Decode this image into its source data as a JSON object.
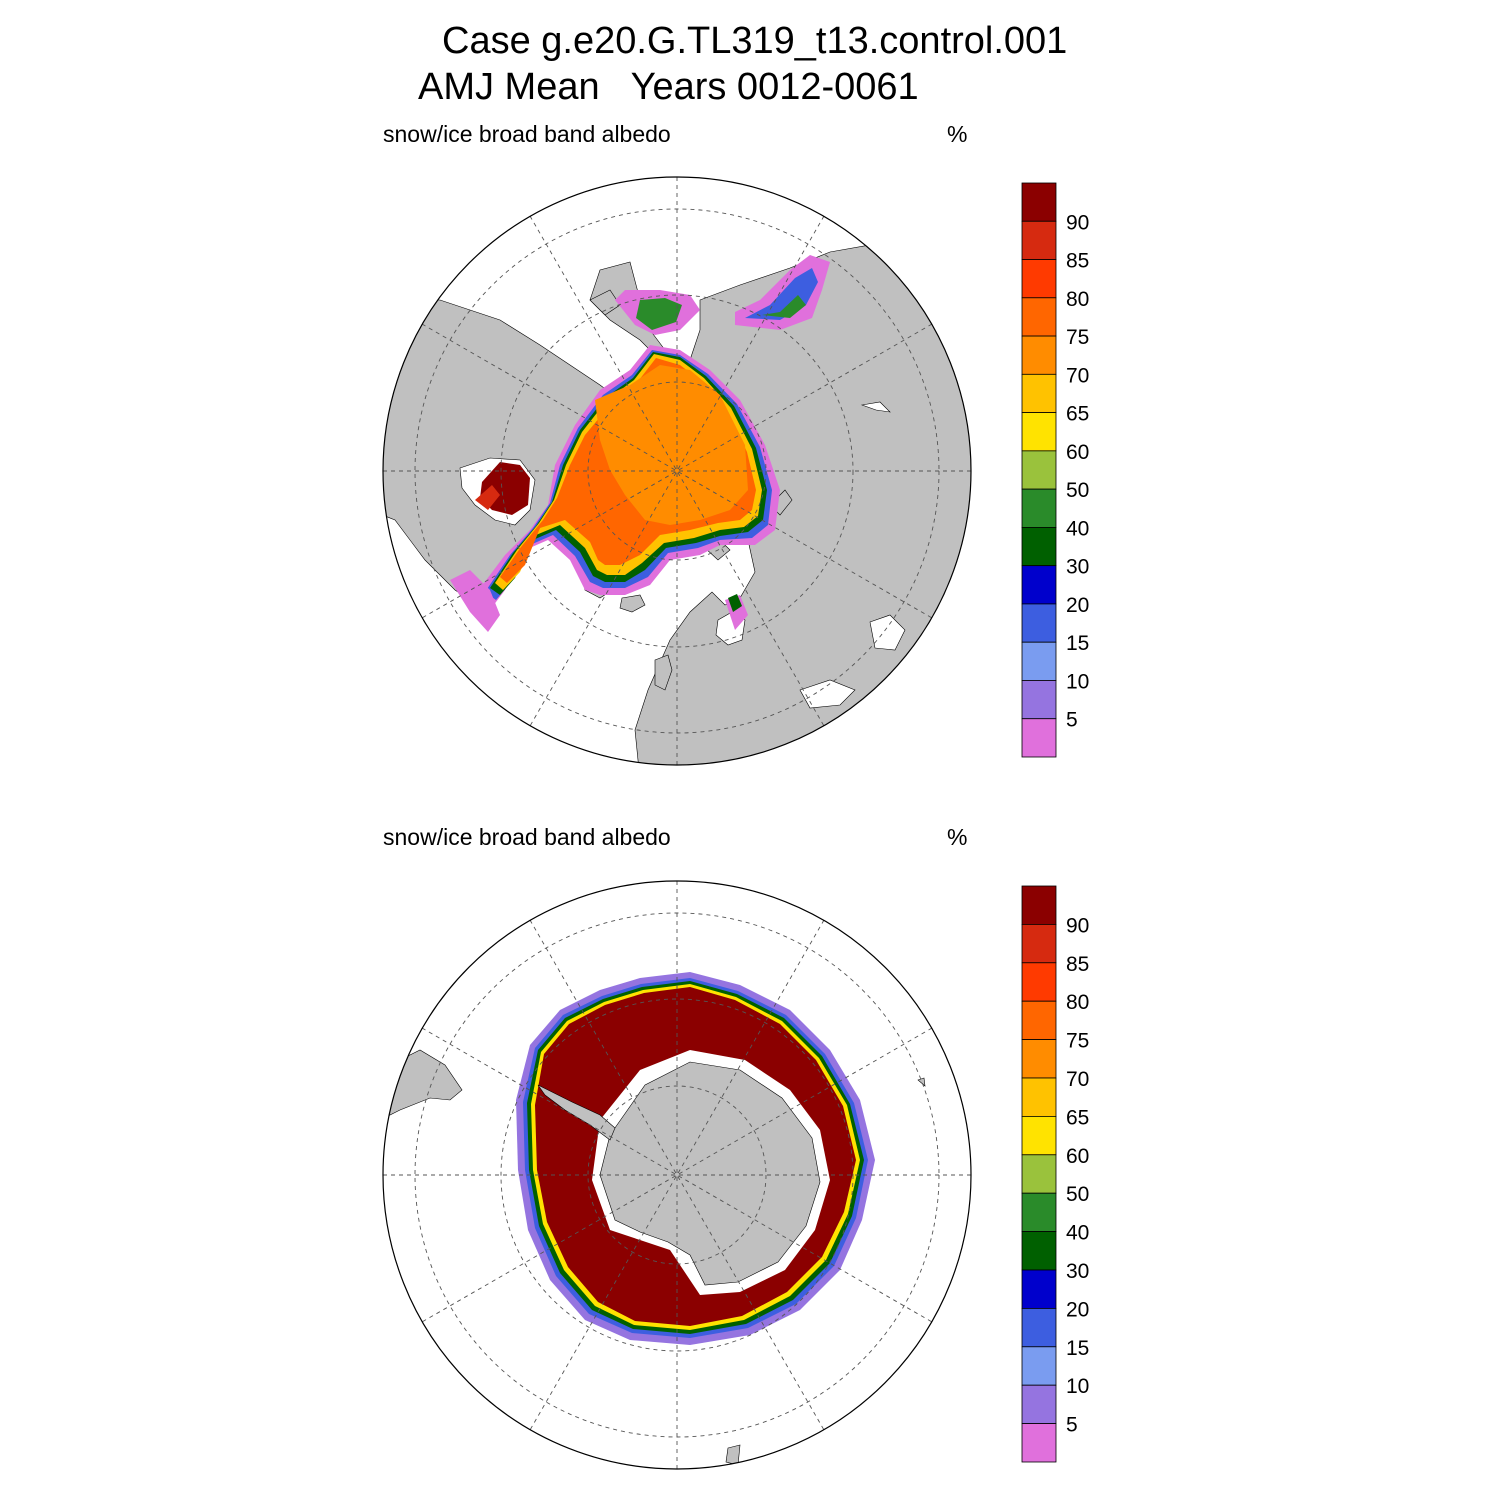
{
  "title": {
    "line1": "Case g.e20.G.TL319_t13.control.001",
    "line2": "AMJ Mean   Years 0012-0061"
  },
  "panels": [
    {
      "name": "north",
      "variable": "snow/ice broad band albedo",
      "units": "%"
    },
    {
      "name": "south",
      "variable": "snow/ice broad band albedo",
      "units": "%"
    }
  ],
  "colorbar": {
    "labels": [
      "90",
      "85",
      "80",
      "75",
      "70",
      "65",
      "60",
      "50",
      "40",
      "30",
      "20",
      "15",
      "10",
      "5"
    ],
    "colors": [
      "#8b0000",
      "#d62a10",
      "#ff3a00",
      "#ff6600",
      "#ff8c00",
      "#ffc200",
      "#ffe300",
      "#9ac23c",
      "#2a8b2a",
      "#006000",
      "#0000cc",
      "#3d5ee0",
      "#7a9cf0",
      "#9574e0",
      "#e070dc"
    ]
  },
  "map_colors": {
    "land": "#c0c0c0",
    "ocean": "#ffffff",
    "grid": "#555555"
  }
}
